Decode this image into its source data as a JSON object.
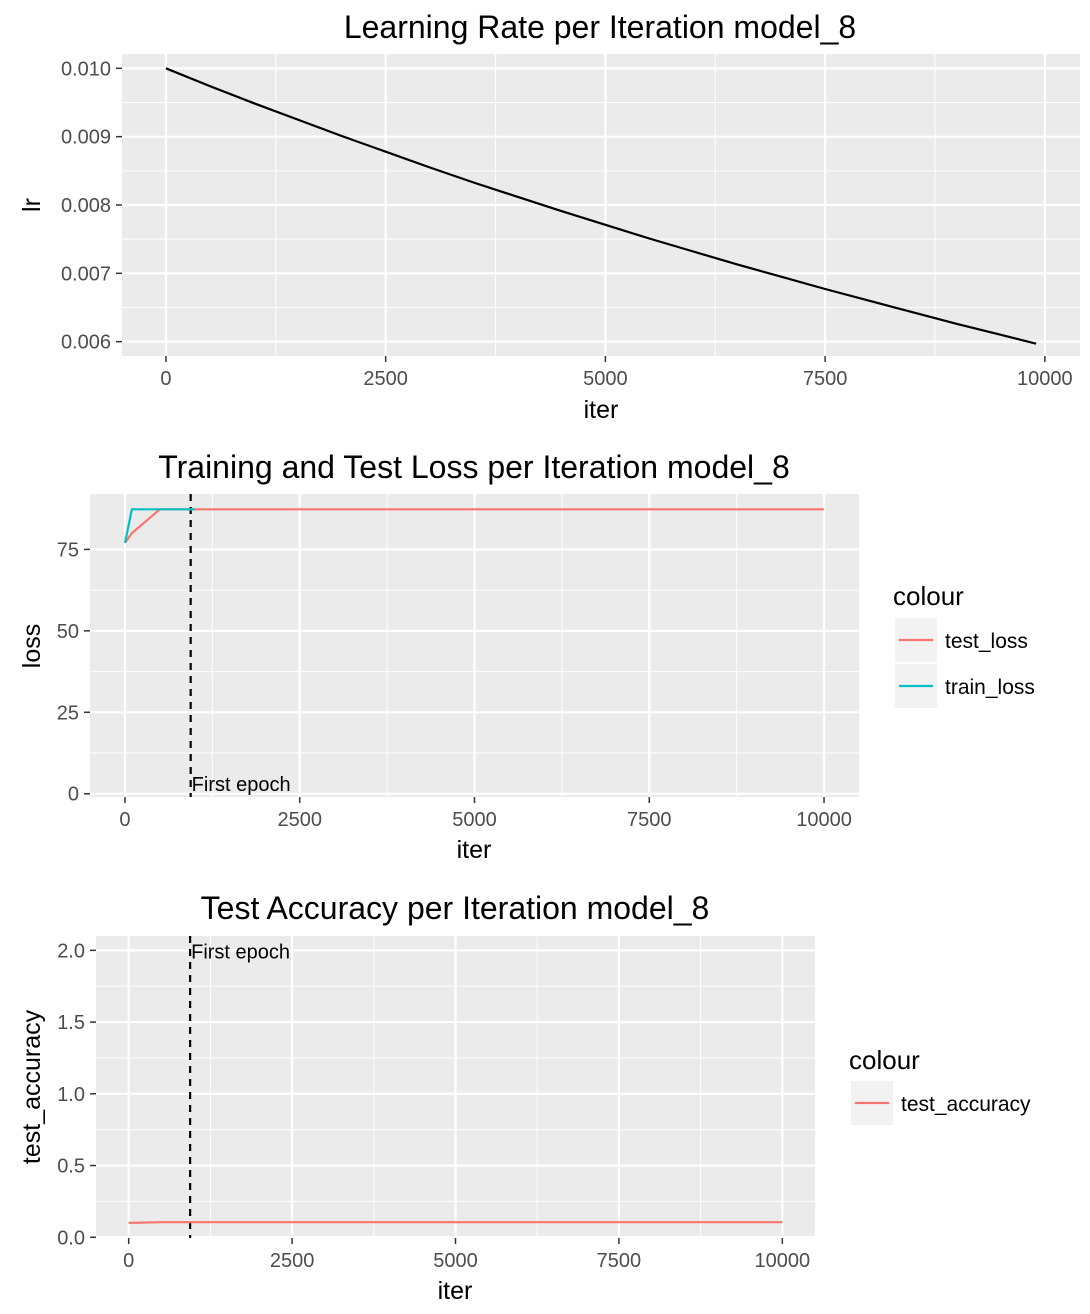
{
  "chart_data": [
    {
      "type": "line",
      "title": "Learning Rate per Iteration model_8",
      "xlabel": "iter",
      "ylabel": "lr",
      "xlim": [
        -500,
        10400
      ],
      "ylim": [
        0.00579,
        0.01021
      ],
      "xticks": [
        0,
        2500,
        5000,
        7500,
        10000
      ],
      "xtick_labels": [
        "0",
        "2500",
        "5000",
        "7500",
        "10000"
      ],
      "yticks": [
        0.006,
        0.007,
        0.008,
        0.009,
        0.01
      ],
      "ytick_labels": [
        "0.006",
        "0.007",
        "0.008",
        "0.009",
        "0.010"
      ],
      "grid": true,
      "legend": null,
      "series": [
        {
          "color": "#000000",
          "x": [
            0,
            500,
            1000,
            1500,
            2000,
            2500,
            3000,
            3500,
            4000,
            4500,
            5000,
            5500,
            6000,
            6500,
            7000,
            7500,
            8000,
            8500,
            9000,
            9500,
            9900
          ],
          "y": [
            0.01,
            0.00974,
            0.00949,
            0.00925,
            0.00901,
            0.00878,
            0.00855,
            0.00833,
            0.00812,
            0.00791,
            0.00771,
            0.00751,
            0.00732,
            0.00713,
            0.00695,
            0.00677,
            0.0066,
            0.00643,
            0.00626,
            0.0061,
            0.00597
          ]
        }
      ]
    },
    {
      "type": "line",
      "title": "Training and Test Loss per Iteration model_8",
      "xlabel": "iter",
      "ylabel": "loss",
      "xlim": [
        -500,
        10500
      ],
      "ylim": [
        -1,
        92
      ],
      "xticks": [
        0,
        2500,
        5000,
        7500,
        10000
      ],
      "xtick_labels": [
        "0",
        "2500",
        "5000",
        "7500",
        "10000"
      ],
      "yticks": [
        0,
        25,
        50,
        75
      ],
      "ytick_labels": [
        "0",
        "25",
        "50",
        "75"
      ],
      "grid": true,
      "legend": {
        "title": "colour",
        "position": "right"
      },
      "vline": {
        "x": 940,
        "label": "First epoch"
      },
      "series": [
        {
          "name": "test_loss",
          "color": "#F8766D",
          "x": [
            0,
            100,
            500,
            1000,
            10000
          ],
          "y": [
            77.0,
            80.0,
            87.3,
            87.3,
            87.3
          ]
        },
        {
          "name": "train_loss",
          "color": "#00BFC4",
          "x": [
            0,
            100,
            500,
            1000
          ],
          "y": [
            77.0,
            87.3,
            87.3,
            87.3
          ]
        }
      ]
    },
    {
      "type": "line",
      "title": "Test Accuracy per Iteration model_8",
      "xlabel": "iter",
      "ylabel": "test_accuracy",
      "xlim": [
        -500,
        10500
      ],
      "ylim": [
        -0.005,
        2.1
      ],
      "xticks": [
        0,
        2500,
        5000,
        7500,
        10000
      ],
      "xtick_labels": [
        "0",
        "2500",
        "5000",
        "7500",
        "10000"
      ],
      "yticks": [
        0.0,
        0.5,
        1.0,
        1.5,
        2.0
      ],
      "ytick_labels": [
        "0.0",
        "0.5",
        "1.0",
        "1.5",
        "2.0"
      ],
      "grid": true,
      "legend": {
        "title": "colour",
        "position": "right"
      },
      "vline": {
        "x": 940,
        "label": "First epoch"
      },
      "series": [
        {
          "name": "test_accuracy",
          "color": "#F8766D",
          "x": [
            0,
            500,
            1000,
            10000
          ],
          "y": [
            0.1,
            0.105,
            0.105,
            0.105
          ]
        }
      ]
    }
  ]
}
